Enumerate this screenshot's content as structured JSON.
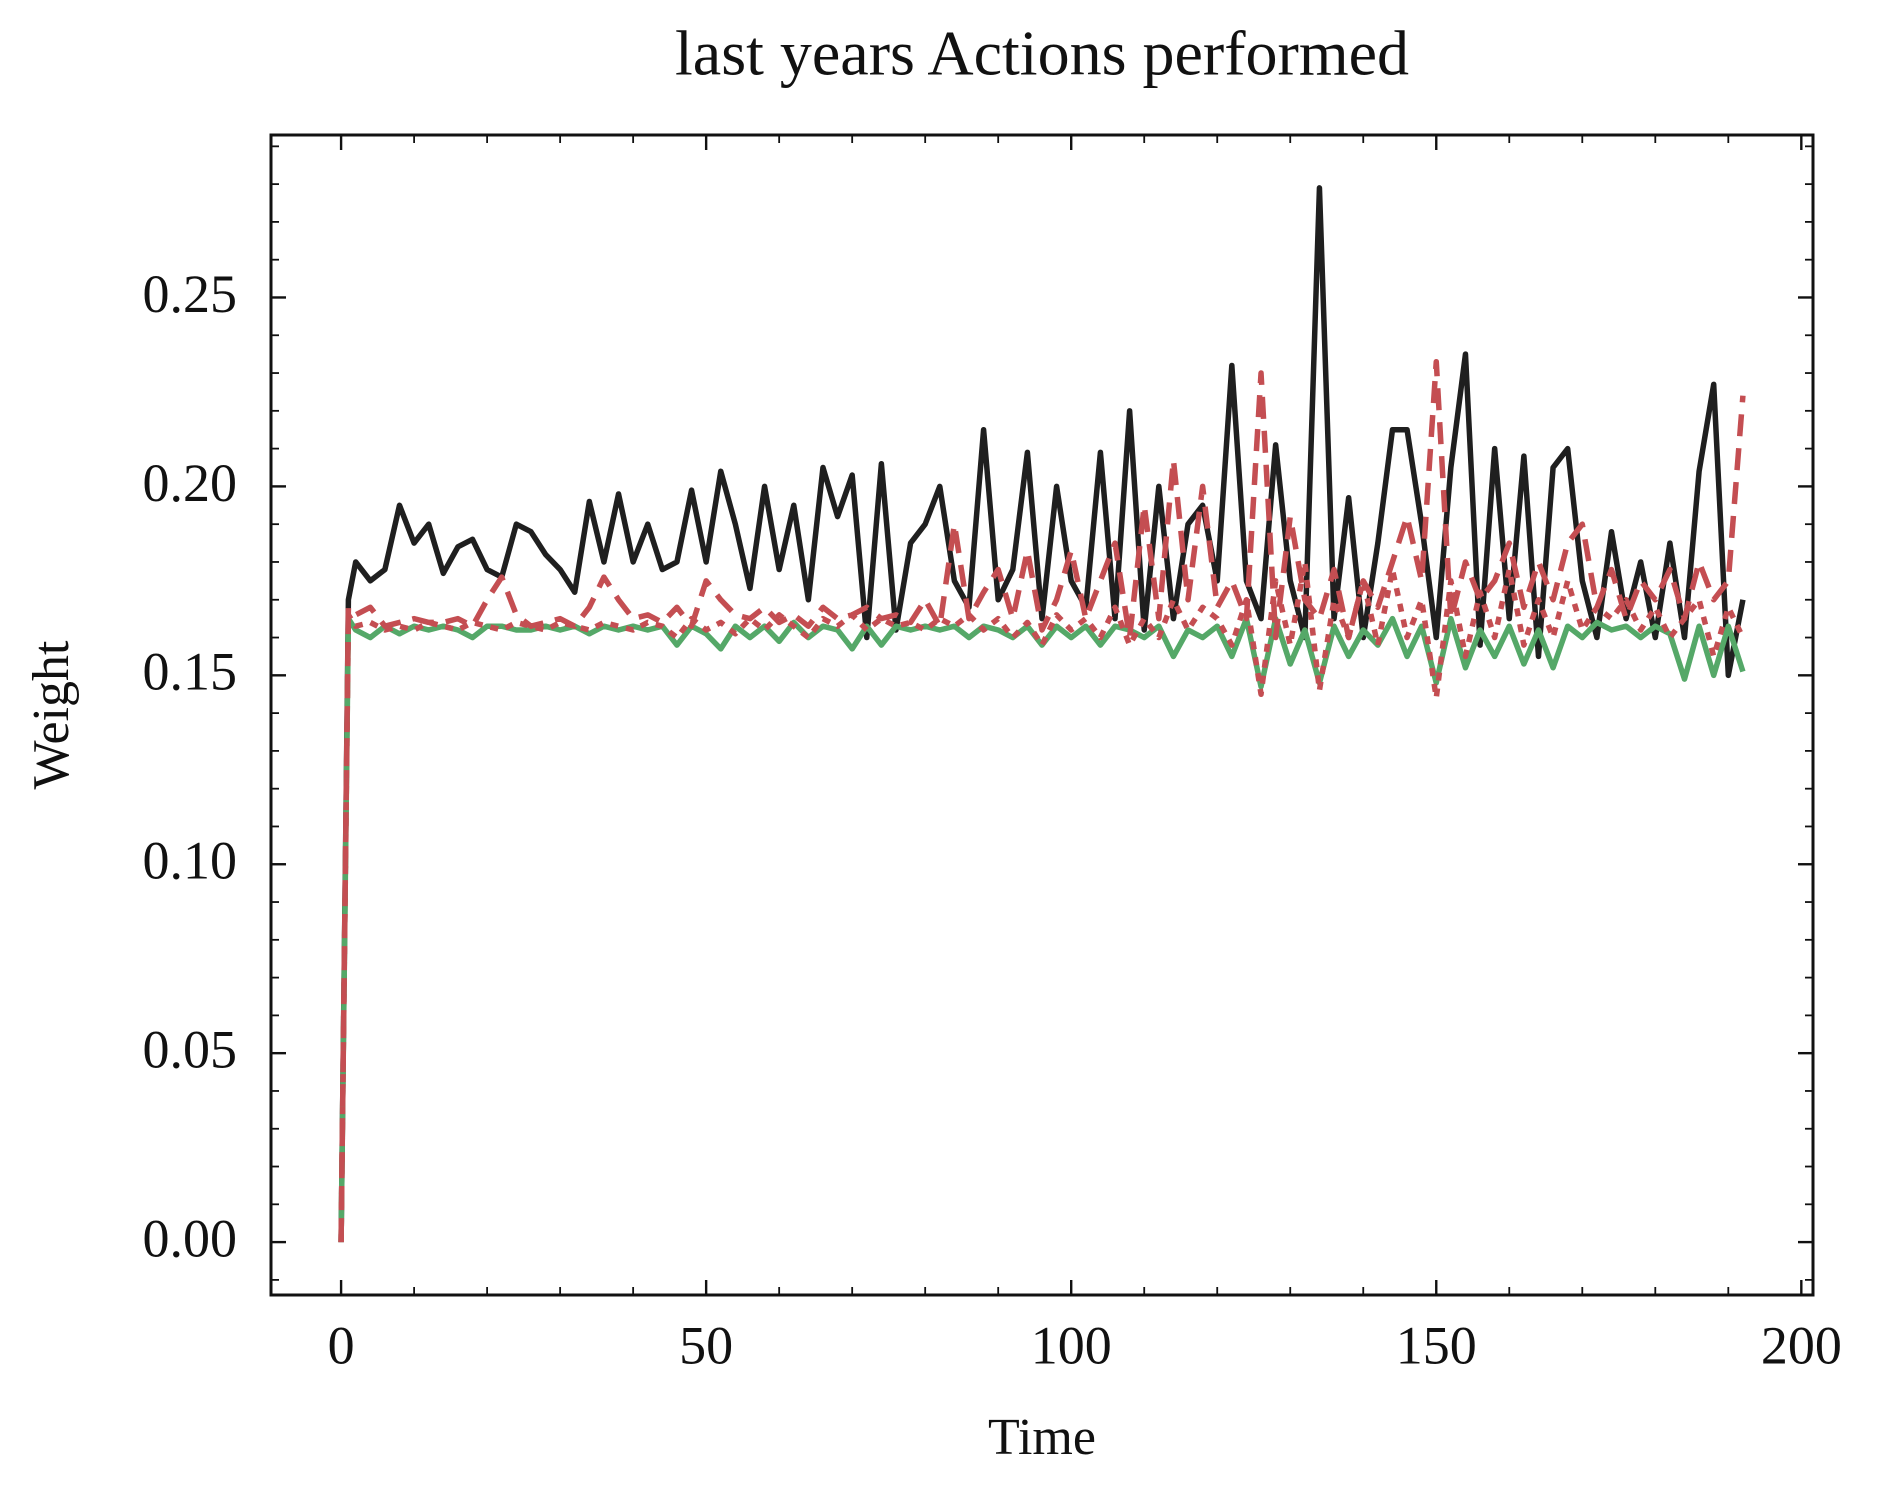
{
  "chart_data": {
    "type": "line",
    "title": "last years Actions performed",
    "xlabel": "Time",
    "ylabel": "Weight",
    "x": [
      0,
      1,
      2,
      4,
      6,
      8,
      10,
      12,
      14,
      16,
      18,
      20,
      22,
      24,
      26,
      28,
      30,
      32,
      34,
      36,
      38,
      40,
      42,
      44,
      46,
      48,
      50,
      52,
      54,
      56,
      58,
      60,
      62,
      64,
      66,
      68,
      70,
      72,
      74,
      76,
      78,
      80,
      82,
      84,
      86,
      88,
      90,
      92,
      94,
      96,
      98,
      100,
      102,
      104,
      106,
      108,
      110,
      112,
      114,
      116,
      118,
      120,
      122,
      124,
      126,
      128,
      130,
      132,
      134,
      136,
      138,
      140,
      142,
      144,
      146,
      148,
      150,
      152,
      154,
      156,
      158,
      160,
      162,
      164,
      166,
      168,
      170,
      172,
      174,
      176,
      178,
      180,
      182,
      184,
      186,
      188,
      190,
      192
    ],
    "series": [
      {
        "color": "#1f1f1f",
        "linestyle": "solid",
        "values": [
          0,
          0.17,
          0.18,
          0.175,
          0.178,
          0.195,
          0.185,
          0.19,
          0.177,
          0.184,
          0.186,
          0.178,
          0.176,
          0.19,
          0.188,
          0.182,
          0.178,
          0.172,
          0.196,
          0.18,
          0.198,
          0.18,
          0.19,
          0.178,
          0.18,
          0.199,
          0.18,
          0.204,
          0.19,
          0.173,
          0.2,
          0.178,
          0.195,
          0.17,
          0.205,
          0.192,
          0.203,
          0.16,
          0.206,
          0.162,
          0.185,
          0.19,
          0.2,
          0.175,
          0.168,
          0.215,
          0.17,
          0.178,
          0.209,
          0.165,
          0.2,
          0.175,
          0.168,
          0.209,
          0.165,
          0.22,
          0.162,
          0.2,
          0.165,
          0.19,
          0.195,
          0.175,
          0.232,
          0.175,
          0.165,
          0.211,
          0.175,
          0.16,
          0.279,
          0.165,
          0.197,
          0.16,
          0.185,
          0.215,
          0.215,
          0.19,
          0.16,
          0.205,
          0.235,
          0.158,
          0.21,
          0.165,
          0.208,
          0.155,
          0.205,
          0.21,
          0.175,
          0.16,
          0.188,
          0.165,
          0.18,
          0.16,
          0.185,
          0.16,
          0.204,
          0.227,
          0.15,
          0.17
        ]
      },
      {
        "color": "#55a868",
        "linestyle": "solid",
        "values": [
          0,
          0.165,
          0.162,
          0.16,
          0.163,
          0.161,
          0.163,
          0.162,
          0.163,
          0.162,
          0.16,
          0.163,
          0.163,
          0.162,
          0.162,
          0.163,
          0.162,
          0.163,
          0.161,
          0.163,
          0.162,
          0.163,
          0.162,
          0.163,
          0.158,
          0.163,
          0.161,
          0.157,
          0.163,
          0.16,
          0.163,
          0.159,
          0.164,
          0.16,
          0.163,
          0.162,
          0.157,
          0.163,
          0.158,
          0.163,
          0.162,
          0.163,
          0.162,
          0.163,
          0.16,
          0.163,
          0.162,
          0.16,
          0.163,
          0.158,
          0.163,
          0.16,
          0.163,
          0.158,
          0.163,
          0.162,
          0.16,
          0.163,
          0.155,
          0.162,
          0.16,
          0.163,
          0.155,
          0.165,
          0.147,
          0.165,
          0.153,
          0.162,
          0.148,
          0.163,
          0.155,
          0.162,
          0.158,
          0.165,
          0.155,
          0.163,
          0.148,
          0.165,
          0.152,
          0.162,
          0.155,
          0.163,
          0.153,
          0.162,
          0.152,
          0.163,
          0.16,
          0.164,
          0.162,
          0.163,
          0.16,
          0.163,
          0.161,
          0.149,
          0.163,
          0.15,
          0.163,
          0.151
        ]
      },
      {
        "color": "#c44e52",
        "linestyle": "dashed",
        "values": [
          0,
          0.168,
          0.166,
          0.168,
          0.163,
          0.164,
          0.165,
          0.164,
          0.164,
          0.165,
          0.163,
          0.17,
          0.176,
          0.166,
          0.163,
          0.164,
          0.165,
          0.163,
          0.168,
          0.176,
          0.17,
          0.165,
          0.166,
          0.164,
          0.168,
          0.163,
          0.175,
          0.17,
          0.166,
          0.165,
          0.168,
          0.164,
          0.166,
          0.163,
          0.168,
          0.165,
          0.166,
          0.168,
          0.165,
          0.166,
          0.164,
          0.17,
          0.163,
          0.19,
          0.165,
          0.172,
          0.178,
          0.165,
          0.183,
          0.162,
          0.17,
          0.183,
          0.165,
          0.175,
          0.185,
          0.16,
          0.195,
          0.165,
          0.207,
          0.17,
          0.2,
          0.168,
          0.175,
          0.165,
          0.23,
          0.16,
          0.192,
          0.17,
          0.165,
          0.178,
          0.16,
          0.175,
          0.168,
          0.18,
          0.192,
          0.175,
          0.233,
          0.165,
          0.18,
          0.17,
          0.175,
          0.185,
          0.168,
          0.18,
          0.17,
          0.185,
          0.19,
          0.168,
          0.178,
          0.165,
          0.175,
          0.17,
          0.178,
          0.165,
          0.18,
          0.17,
          0.175,
          0.224
        ]
      },
      {
        "color": "#c44e52",
        "linestyle": "dotted",
        "values": [
          0,
          0.166,
          0.163,
          0.164,
          0.162,
          0.163,
          0.162,
          0.164,
          0.163,
          0.162,
          0.164,
          0.163,
          0.162,
          0.164,
          0.163,
          0.162,
          0.164,
          0.163,
          0.162,
          0.164,
          0.163,
          0.162,
          0.164,
          0.163,
          0.16,
          0.165,
          0.162,
          0.164,
          0.161,
          0.165,
          0.162,
          0.166,
          0.163,
          0.16,
          0.165,
          0.163,
          0.166,
          0.162,
          0.165,
          0.163,
          0.164,
          0.162,
          0.165,
          0.163,
          0.166,
          0.162,
          0.165,
          0.16,
          0.164,
          0.158,
          0.166,
          0.162,
          0.165,
          0.16,
          0.168,
          0.158,
          0.165,
          0.16,
          0.17,
          0.162,
          0.168,
          0.165,
          0.158,
          0.17,
          0.145,
          0.175,
          0.158,
          0.18,
          0.146,
          0.17,
          0.16,
          0.175,
          0.158,
          0.178,
          0.16,
          0.17,
          0.144,
          0.175,
          0.155,
          0.172,
          0.16,
          0.178,
          0.158,
          0.17,
          0.16,
          0.175,
          0.162,
          0.168,
          0.165,
          0.17,
          0.162,
          0.168,
          0.16,
          0.165,
          0.17,
          0.155,
          0.168,
          0.16
        ]
      }
    ],
    "xlim": [
      -9.6,
      201.6
    ],
    "ylim": [
      -0.014,
      0.293
    ],
    "xticks": [
      0,
      50,
      100,
      150,
      200
    ],
    "yticks": [
      {
        "value": 0,
        "label": "0.00"
      },
      0.05,
      {
        "value": 0.1,
        "label": "0.10"
      },
      0.15,
      {
        "value": 0.2,
        "label": "0.20"
      },
      0.25
    ],
    "xminorticks": [
      10,
      20,
      30,
      40,
      60,
      70,
      80,
      90,
      110,
      120,
      130,
      140,
      160,
      170,
      180,
      190
    ],
    "yminorticks": [
      -0.01,
      0.01,
      0.02,
      0.03,
      0.04,
      0.06,
      0.07,
      0.08,
      0.09,
      0.11,
      0.12,
      0.13,
      0.14,
      0.16,
      0.17,
      0.18,
      0.19,
      0.21,
      0.22,
      0.23,
      0.24,
      0.26,
      0.27,
      0.28,
      0.29
    ],
    "grid": false
  }
}
